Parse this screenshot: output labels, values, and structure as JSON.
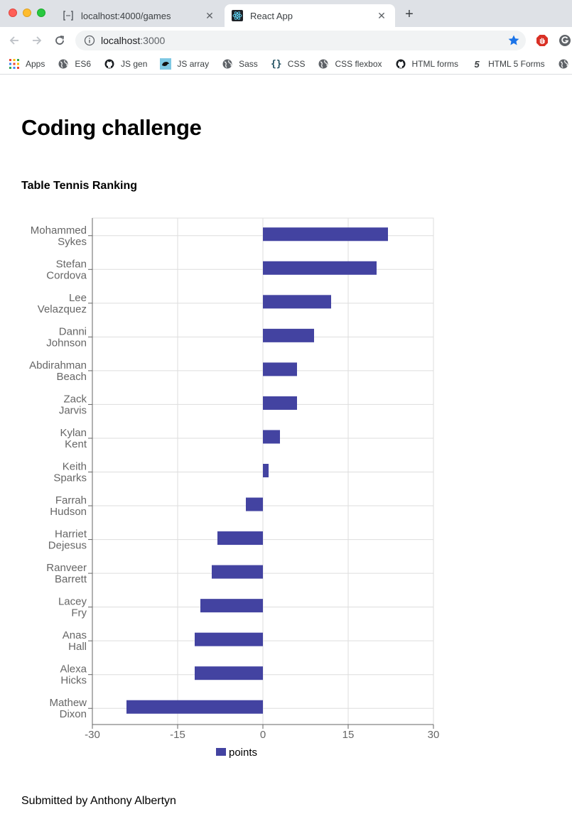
{
  "browser": {
    "tabs": [
      {
        "title": "localhost:4000/games",
        "active": false
      },
      {
        "title": "React App",
        "active": true
      }
    ],
    "url_host": "localhost",
    "url_port": ":3000",
    "bookmarks": [
      "Apps",
      "ES6",
      "JS gen",
      "JS array",
      "Sass",
      "CSS",
      "CSS flexbox",
      "HTML forms",
      "HTML 5 Forms"
    ]
  },
  "page": {
    "heading": "Coding challenge",
    "subheading": "Table Tennis Ranking",
    "footer": "Submitted by Anthony Albertyn"
  },
  "colors": {
    "bar": "#4343a1",
    "grid": "#dddddd",
    "axis": "#666666",
    "tick_text": "#666666"
  },
  "chart_data": {
    "type": "bar",
    "orientation": "horizontal",
    "categories": [
      [
        "Mohammed",
        "Sykes"
      ],
      [
        "Stefan",
        "Cordova"
      ],
      [
        "Lee",
        "Velazquez"
      ],
      [
        "Danni",
        "Johnson"
      ],
      [
        "Abdirahman",
        "Beach"
      ],
      [
        "Zack",
        "Jarvis"
      ],
      [
        "Kylan",
        "Kent"
      ],
      [
        "Keith",
        "Sparks"
      ],
      [
        "Farrah",
        "Hudson"
      ],
      [
        "Harriet",
        "Dejesus"
      ],
      [
        "Ranveer",
        "Barrett"
      ],
      [
        "Lacey",
        "Fry"
      ],
      [
        "Anas",
        "Hall"
      ],
      [
        "Alexa",
        "Hicks"
      ],
      [
        "Mathew",
        "Dixon"
      ]
    ],
    "series": [
      {
        "name": "points",
        "values": [
          22,
          20,
          12,
          9,
          6,
          6,
          3,
          1,
          -3,
          -8,
          -9,
          -11,
          -12,
          -12,
          -24
        ]
      }
    ],
    "xlim": [
      -30,
      30
    ],
    "xticks": [
      -30,
      -15,
      0,
      15,
      30
    ],
    "grid": true,
    "legend": "bottom"
  }
}
